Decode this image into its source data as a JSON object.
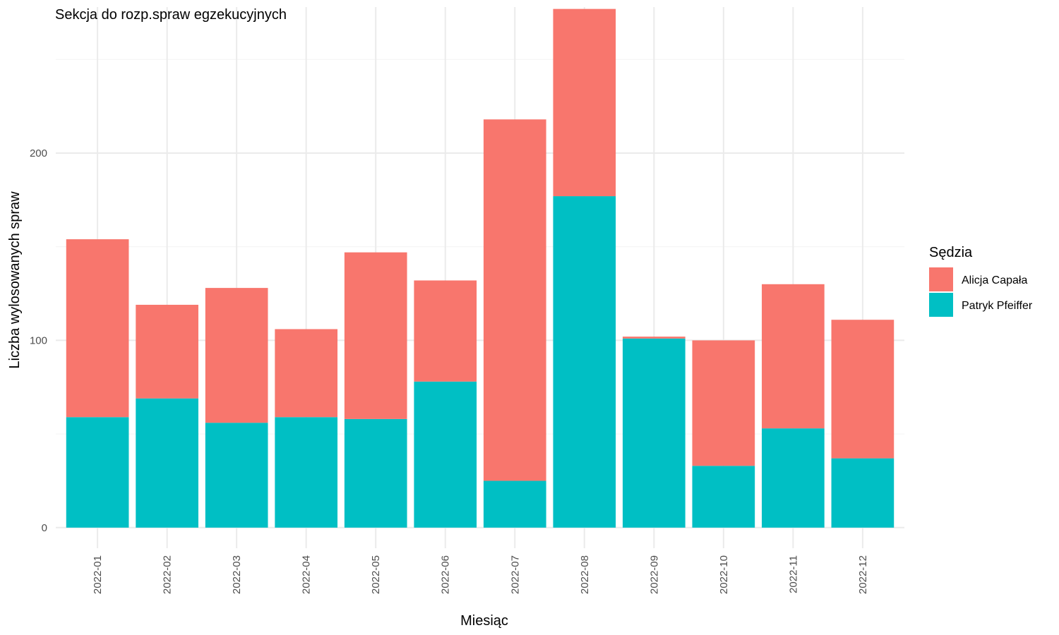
{
  "chart_data": {
    "type": "bar",
    "stacked": true,
    "title": "Sekcja do rozp.spraw egzekucyjnych",
    "xlabel": "Miesiąc",
    "ylabel": "Liczba wylosowanych spraw",
    "ylim": [
      -11,
      278
    ],
    "yticks": [
      0,
      100,
      200
    ],
    "grid": true,
    "legend": {
      "title": "Sędzia",
      "position": "right"
    },
    "categories": [
      "2022-01",
      "2022-02",
      "2022-03",
      "2022-04",
      "2022-05",
      "2022-06",
      "2022-07",
      "2022-08",
      "2022-09",
      "2022-10",
      "2022-11",
      "2022-12"
    ],
    "series": [
      {
        "name": "Patryk Pfeiffer",
        "color": "#00BFC4",
        "values": [
          59,
          69,
          56,
          59,
          58,
          78,
          25,
          177,
          101,
          33,
          53,
          37
        ]
      },
      {
        "name": "Alicja Capała",
        "color": "#F8766D",
        "values": [
          95,
          50,
          72,
          47,
          89,
          54,
          193,
          100,
          1,
          67,
          77,
          74
        ]
      }
    ]
  }
}
